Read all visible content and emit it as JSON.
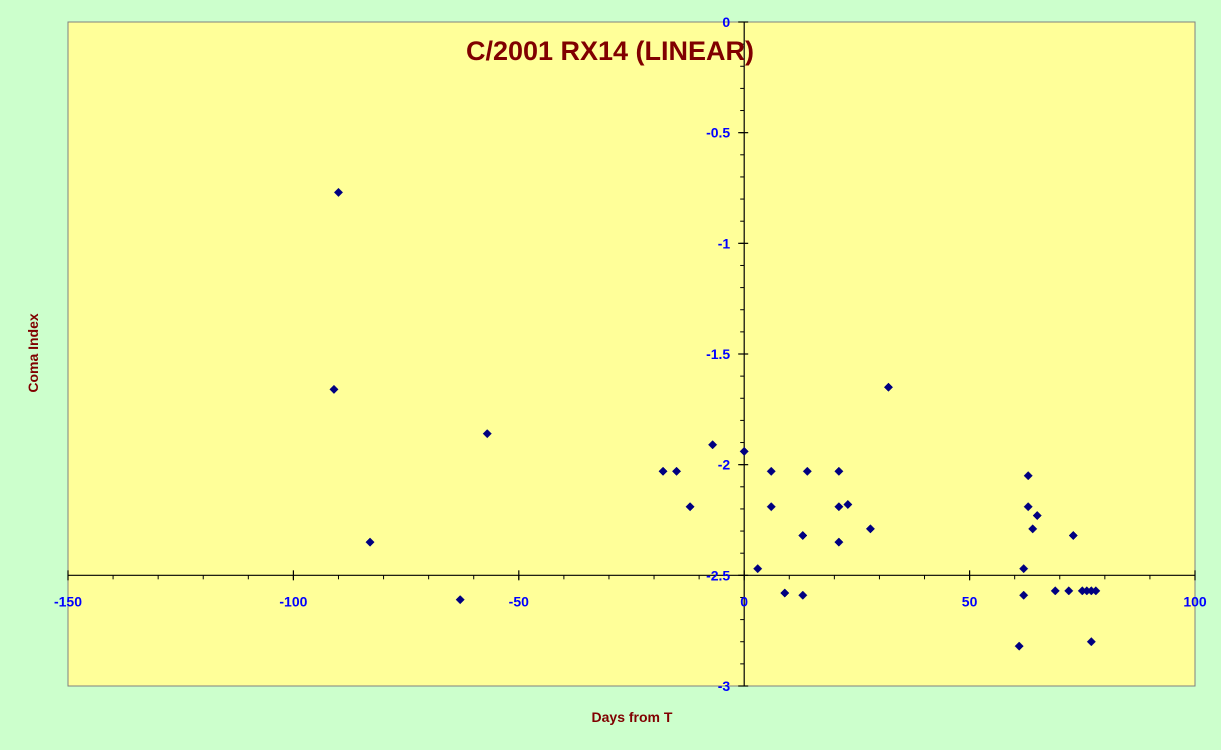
{
  "colors": {
    "page_background": "#ccffcc",
    "plot_background": "#ffff99",
    "title": "#800000",
    "axis_labels": "#800000",
    "tick_labels": "#0000ff",
    "markers": "#000080",
    "axes": "#000000"
  },
  "chart_data": {
    "type": "scatter",
    "title": "C/2001 RX14 (LINEAR)",
    "xlabel": "Days from T",
    "ylabel": "Coma Index",
    "xlim": [
      -150,
      100
    ],
    "ylim": [
      -3,
      0
    ],
    "x_ticks": [
      -150,
      -100,
      -50,
      0,
      50,
      100
    ],
    "x_tick_labels": [
      "-150",
      "-100",
      "-50",
      "0",
      "50",
      "100"
    ],
    "y_ticks": [
      0,
      -0.5,
      -1,
      -1.5,
      -2,
      -2.5,
      -3
    ],
    "y_tick_labels": [
      "0",
      "-0.5",
      "-1",
      "-1.5",
      "-2",
      "-2.5",
      "-3"
    ],
    "x_axis_crosses_y": -2.5,
    "y_axis_crosses_x": 0,
    "grid": false,
    "marker": "diamond",
    "series": [
      {
        "points": [
          [
            -90,
            -0.77
          ],
          [
            -91,
            -1.66
          ],
          [
            -83,
            -2.35
          ],
          [
            -63,
            -2.61
          ],
          [
            -57,
            -1.86
          ],
          [
            -18,
            -2.03
          ],
          [
            -15,
            -2.03
          ],
          [
            -12,
            -2.19
          ],
          [
            -7,
            -1.91
          ],
          [
            0,
            -1.94
          ],
          [
            3,
            -2.47
          ],
          [
            6,
            -2.03
          ],
          [
            6,
            -2.19
          ],
          [
            9,
            -2.58
          ],
          [
            13,
            -2.32
          ],
          [
            13,
            -2.59
          ],
          [
            14,
            -2.03
          ],
          [
            21,
            -2.03
          ],
          [
            21,
            -2.19
          ],
          [
            21,
            -2.35
          ],
          [
            23,
            -2.18
          ],
          [
            28,
            -2.29
          ],
          [
            32,
            -1.65
          ],
          [
            61,
            -2.82
          ],
          [
            62,
            -2.47
          ],
          [
            62,
            -2.59
          ],
          [
            63,
            -2.05
          ],
          [
            63,
            -2.19
          ],
          [
            64,
            -2.29
          ],
          [
            65,
            -2.23
          ],
          [
            69,
            -2.57
          ],
          [
            72,
            -2.57
          ],
          [
            73,
            -2.32
          ],
          [
            75,
            -2.57
          ],
          [
            76,
            -2.57
          ],
          [
            77,
            -2.57
          ],
          [
            77,
            -2.8
          ],
          [
            78,
            -2.57
          ]
        ]
      }
    ]
  }
}
